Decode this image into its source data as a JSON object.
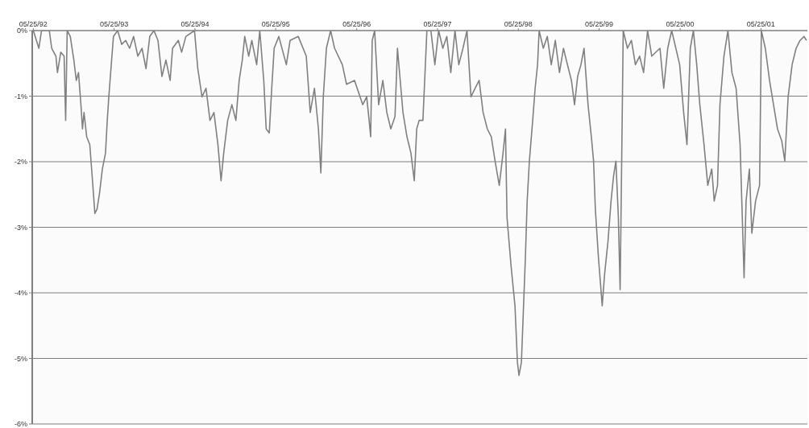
{
  "chart_data": {
    "type": "line",
    "x": [
      "1992-05-25",
      "1992-06-19",
      "1992-07-01",
      "1992-08-05",
      "1992-08-16",
      "1992-09-04",
      "1992-09-11",
      "1992-09-26",
      "1992-10-11",
      "1992-10-18",
      "1992-10-25",
      "1992-11-08",
      "1992-11-24",
      "1992-12-05",
      "1992-12-15",
      "1992-12-26",
      "1993-01-02",
      "1993-01-09",
      "1993-01-21",
      "1993-02-04",
      "1993-02-15",
      "1993-02-27",
      "1993-03-09",
      "1993-03-20",
      "1993-04-02",
      "1993-04-16",
      "1993-04-24",
      "1993-05-01",
      "1993-05-08",
      "1993-05-15",
      "1993-05-22",
      "1993-06-10",
      "1993-06-28",
      "1993-07-16",
      "1993-08-03",
      "1993-08-21",
      "1993-09-09",
      "1993-09-28",
      "1993-10-16",
      "1993-11-02",
      "1993-11-21",
      "1993-12-09",
      "1993-12-27",
      "1994-01-14",
      "1994-02-02",
      "1994-02-13",
      "1994-03-11",
      "1994-03-26",
      "1994-04-14",
      "1994-05-23",
      "1994-06-07",
      "1994-06-26",
      "1994-07-14",
      "1994-08-01",
      "1994-08-19",
      "1994-09-06",
      "1994-09-20",
      "1994-10-02",
      "1994-10-20",
      "1994-11-08",
      "1994-11-26",
      "1994-12-11",
      "1994-12-25",
      "1995-01-05",
      "1995-01-23",
      "1995-02-06",
      "1995-02-28",
      "1995-03-14",
      "1995-04-01",
      "1995-04-12",
      "1995-04-26",
      "1995-05-07",
      "1995-05-18",
      "1995-06-08",
      "1995-07-12",
      "1995-07-29",
      "1995-09-04",
      "1995-10-10",
      "1995-10-28",
      "1995-11-16",
      "1995-12-04",
      "1995-12-15",
      "1995-12-26",
      "1996-01-09",
      "1996-01-28",
      "1996-02-15",
      "1996-03-21",
      "1996-04-09",
      "1996-05-15",
      "1996-06-21",
      "1996-07-09",
      "1996-07-20",
      "1996-07-27",
      "1996-08-03",
      "1996-08-14",
      "1996-09-01",
      "1996-09-20",
      "1996-10-08",
      "1996-10-26",
      "1996-11-14",
      "1996-11-25",
      "1996-12-20",
      "1997-01-07",
      "1997-01-25",
      "1997-02-09",
      "1997-02-20",
      "1997-03-03",
      "1997-03-20",
      "1997-04-07",
      "1997-04-25",
      "1997-05-13",
      "1997-05-30",
      "1997-06-18",
      "1997-07-06",
      "1997-07-24",
      "1997-08-12",
      "1997-08-29",
      "1997-09-17",
      "1997-10-05",
      "1997-10-23",
      "1997-11-11",
      "1997-11-29",
      "1997-12-17",
      "1998-01-05",
      "1998-01-23",
      "1998-02-09",
      "1998-02-28",
      "1998-03-17",
      "1998-03-28",
      "1998-04-04",
      "1998-04-22",
      "1998-05-10",
      "1998-05-21",
      "1998-05-28",
      "1998-06-08",
      "1998-06-15",
      "1998-06-26",
      "1998-07-04",
      "1998-07-14",
      "1998-07-29",
      "1998-08-09",
      "1998-08-20",
      "1998-08-27",
      "1998-09-15",
      "1998-10-03",
      "1998-10-21",
      "1998-11-08",
      "1998-11-27",
      "1998-12-15",
      "1999-01-02",
      "1999-01-20",
      "1999-02-03",
      "1999-02-17",
      "1999-03-04",
      "1999-03-18",
      "1999-04-05",
      "1999-04-20",
      "1999-04-30",
      "1999-05-08",
      "1999-05-22",
      "1999-06-01",
      "1999-06-08",
      "1999-06-19",
      "1999-07-04",
      "1999-07-18",
      "1999-07-29",
      "1999-08-09",
      "1999-08-20",
      "1999-08-28",
      "1999-09-04",
      "1999-09-11",
      "1999-09-30",
      "1999-10-18",
      "1999-11-05",
      "1999-11-24",
      "1999-12-12",
      "1999-12-30",
      "2000-01-18",
      "2000-02-24",
      "2000-03-12",
      "2000-03-30",
      "2000-04-17",
      "2000-05-23",
      "2000-06-10",
      "2000-06-25",
      "2000-07-10",
      "2000-07-24",
      "2000-08-08",
      "2000-08-22",
      "2000-09-10",
      "2000-09-27",
      "2000-10-15",
      "2000-10-26",
      "2000-11-10",
      "2000-11-21",
      "2000-12-09",
      "2000-12-27",
      "2001-01-14",
      "2001-02-02",
      "2001-02-20",
      "2001-03-03",
      "2001-03-10",
      "2001-03-19",
      "2001-04-03",
      "2001-04-14",
      "2001-05-01",
      "2001-05-19",
      "2001-05-27",
      "2001-06-14",
      "2001-07-03",
      "2001-07-21",
      "2001-08-08",
      "2001-08-27",
      "2001-09-10",
      "2001-09-25",
      "2001-10-13",
      "2001-10-31",
      "2001-11-18",
      "2001-12-06",
      "2001-12-17"
    ],
    "series": [
      {
        "color": "#808080",
        "values": [
          0,
          -0.27,
          0,
          0,
          -0.27,
          -0.39,
          -0.64,
          -0.33,
          -0.39,
          -1.37,
          0,
          -0.09,
          -0.45,
          -0.76,
          -0.64,
          -1.13,
          -1.5,
          -1.25,
          -1.62,
          -1.74,
          -2.23,
          -2.79,
          -2.72,
          -2.48,
          -2.11,
          -1.87,
          -1.37,
          -1.01,
          -0.7,
          -0.39,
          -0.09,
          0,
          -0.21,
          -0.15,
          -0.27,
          -0.09,
          -0.39,
          -0.27,
          -0.58,
          -0.09,
          0,
          -0.15,
          -0.7,
          -0.45,
          -0.76,
          -0.27,
          -0.15,
          -0.33,
          -0.09,
          0,
          -0.58,
          -1.01,
          -0.88,
          -1.37,
          -1.25,
          -1.74,
          -2.29,
          -1.87,
          -1.37,
          -1.13,
          -1.37,
          -0.76,
          -0.45,
          -0.09,
          -0.39,
          -0.15,
          -0.52,
          0,
          -0.76,
          -1.5,
          -1.56,
          -0.88,
          -0.27,
          -0.09,
          -0.52,
          -0.15,
          -0.09,
          -0.39,
          -1.25,
          -0.88,
          -1.5,
          -2.17,
          -1.01,
          -0.27,
          0,
          -0.27,
          -0.52,
          -0.82,
          -0.76,
          -1.13,
          -1.01,
          -1.37,
          -1.62,
          -0.15,
          0,
          -1.13,
          -0.76,
          -1.25,
          -1.5,
          -1.31,
          -0.27,
          -1.25,
          -1.62,
          -1.87,
          -2.29,
          -1.5,
          -1.37,
          -1.37,
          0,
          0,
          -0.52,
          0,
          -0.27,
          -0.09,
          -0.64,
          0,
          -0.52,
          -0.27,
          0,
          -1.01,
          -0.88,
          -0.76,
          -1.25,
          -1.5,
          -1.62,
          -1.99,
          -2.36,
          -1.87,
          -1.5,
          -2.85,
          -3.58,
          -4.2,
          -5.06,
          -5.26,
          -5.06,
          -4.44,
          -3.46,
          -2.6,
          -1.99,
          -1.37,
          -0.88,
          -0.52,
          0,
          -0.27,
          -0.09,
          -0.52,
          -0.15,
          -0.64,
          -0.27,
          -0.52,
          -0.76,
          -1.13,
          -0.7,
          -0.52,
          -0.27,
          -1.13,
          -1.62,
          -1.99,
          -2.72,
          -3.46,
          -3.89,
          -4.2,
          -3.71,
          -3.22,
          -2.6,
          -2.23,
          -1.99,
          -2.85,
          -3.95,
          -1.99,
          0,
          -0.27,
          -0.15,
          -0.52,
          -0.39,
          -0.64,
          0,
          -0.39,
          -0.27,
          -0.88,
          -0.27,
          0,
          -0.52,
          -1.25,
          -1.74,
          -0.27,
          0,
          -0.52,
          -1.13,
          -1.74,
          -2.36,
          -2.11,
          -2.6,
          -2.36,
          -1.13,
          -0.39,
          0,
          -0.64,
          -0.88,
          -1.74,
          -2.97,
          -3.77,
          -2.6,
          -2.11,
          -3.09,
          -2.6,
          -2.36,
          0,
          -0.27,
          -0.76,
          -1.13,
          -1.5,
          -1.68,
          -1.99,
          -1.01,
          -0.52,
          -0.27,
          -0.15,
          -0.09,
          -0.15
        ]
      }
    ],
    "xlim": [
      "1992-05-20",
      "2001-12-21"
    ],
    "xticks": [
      {
        "value": "1992-05-25",
        "label": "05/25/92"
      },
      {
        "value": "1993-05-25",
        "label": "05/25/93"
      },
      {
        "value": "1994-05-25",
        "label": "05/25/94"
      },
      {
        "value": "1995-05-25",
        "label": "05/25/95"
      },
      {
        "value": "1996-05-25",
        "label": "05/25/96"
      },
      {
        "value": "1997-05-25",
        "label": "05/25/97"
      },
      {
        "value": "1998-05-25",
        "label": "05/25/98"
      },
      {
        "value": "1999-05-25",
        "label": "05/25/99"
      },
      {
        "value": "2000-05-25",
        "label": "05/25/00"
      },
      {
        "value": "2001-05-25",
        "label": "05/25/01"
      }
    ],
    "ylim": [
      -6,
      0
    ],
    "yticks": [
      {
        "value": 0,
        "label": "0%"
      },
      {
        "value": -1,
        "label": "-1%"
      },
      {
        "value": -2,
        "label": "-2%"
      },
      {
        "value": -3,
        "label": "-3%"
      },
      {
        "value": -4,
        "label": "-4%"
      },
      {
        "value": -5,
        "label": "-5%"
      },
      {
        "value": -6,
        "label": "-6%"
      }
    ],
    "grid": "y",
    "marker": "none",
    "line_style": "solid"
  }
}
